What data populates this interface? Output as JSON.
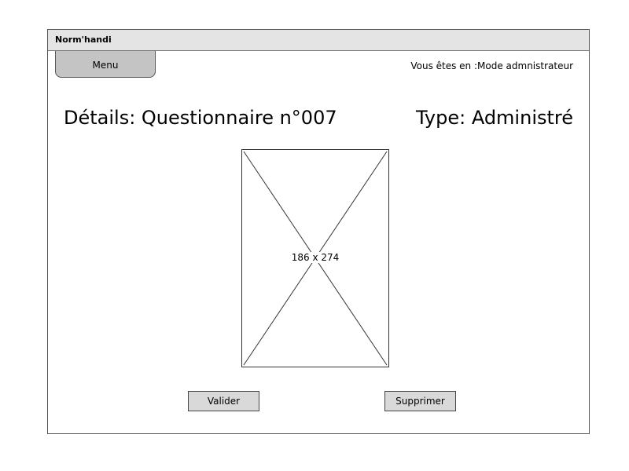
{
  "app": {
    "title": "Norm'handi"
  },
  "header": {
    "menu_label": "Menu",
    "mode_text": "Vous êtes en :Mode admnistrateur"
  },
  "main": {
    "details_title": "Détails: Questionnaire n°007",
    "type_title": "Type: Administré",
    "image_placeholder_label": "186 x 274"
  },
  "actions": {
    "validate_label": "Valider",
    "delete_label": "Supprimer"
  }
}
